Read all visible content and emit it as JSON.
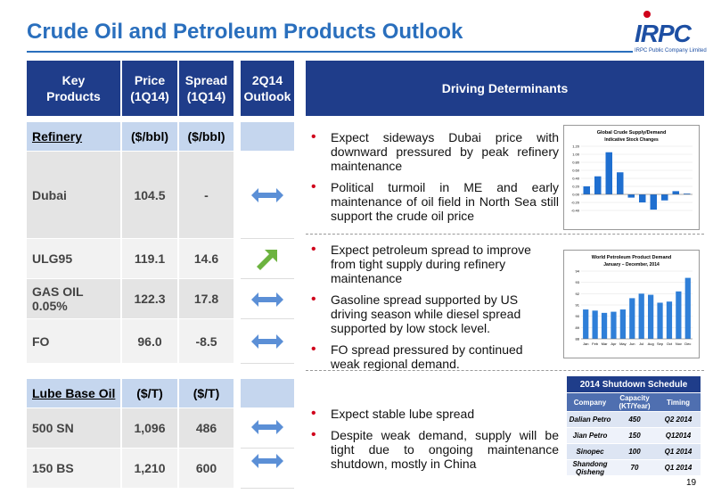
{
  "header": {
    "title": "Crude Oil and Petroleum Products Outlook",
    "logo": "IRPC",
    "logo_subtitle": "IRPC Public Company Limited"
  },
  "products_table": {
    "columns": [
      [
        "Key",
        "Products"
      ],
      [
        "Price",
        "(1Q14)"
      ],
      [
        "Spread",
        "(1Q14)"
      ],
      [
        "2Q14",
        "Outlook"
      ]
    ],
    "sections": [
      {
        "name": "Refinery",
        "units": [
          "($/bbl)",
          "($/bbl)"
        ],
        "rows": [
          [
            "Dubai",
            "104.5",
            "-"
          ],
          [
            "ULG95",
            "119.1",
            "14.6"
          ],
          [
            "GAS OIL 0.05%",
            "122.3",
            "17.8"
          ],
          [
            "FO",
            "96.0",
            "-8.5"
          ]
        ]
      },
      {
        "name": "Lube Base Oil",
        "units": [
          "($/T)",
          "($/T)"
        ],
        "rows": [
          [
            "500 SN",
            "1,096",
            "486"
          ],
          [
            "150 BS",
            "1,210",
            "600"
          ]
        ]
      }
    ]
  },
  "determinants": {
    "title": "Driving Determinants",
    "sections": [
      {
        "bullets": [
          "Expect sideways Dubai price with downward pressured by peak refinery maintenance",
          "Political turmoil in ME and early maintenance of  oil field in North Sea still support the crude oil price"
        ]
      },
      {
        "bullets": [
          "Expect petroleum spread to improve from tight supply during refinery maintenance",
          "Gasoline spread supported by US driving season while diesel spread supported by low stock level.",
          "FO spread pressured by continued weak regional demand."
        ]
      },
      {
        "bullets": [
          "Expect stable lube spread",
          "Despite weak demand, supply will be tight due to ongoing maintenance shutdown, mostly in China"
        ]
      }
    ]
  },
  "chart_data": [
    {
      "type": "bar",
      "title": "Global Crude Supply/Demand",
      "subtitle": "Indicative Stock Changes",
      "values": [
        0.2,
        0.45,
        1.05,
        0.55,
        -0.08,
        -0.2,
        -0.38,
        -0.15,
        0.08,
        0.02
      ],
      "color": "#1f6fd0",
      "ylim": [
        -0.4,
        1.2
      ],
      "yticks": [
        {
          "value": -0.4,
          "label": "-0.40"
        },
        {
          "value": -0.2,
          "label": "-0.20"
        },
        {
          "value": 0,
          "label": "0.00"
        },
        {
          "value": 0.2,
          "label": "0.20"
        },
        {
          "value": 0.4,
          "label": "0.40"
        },
        {
          "value": 0.6,
          "label": "0.60"
        },
        {
          "value": 0.8,
          "label": "0.80"
        },
        {
          "value": 1,
          "label": "1.00"
        },
        {
          "value": 1.2,
          "label": "1.20"
        }
      ]
    },
    {
      "type": "bar",
      "title": "World Petroleum Product Demand",
      "subtitle": "January – December, 2014",
      "categories": [
        "Jan",
        "Feb",
        "Mar",
        "Apr",
        "May",
        "Jun",
        "Jul",
        "Aug",
        "Sep",
        "Oct",
        "Nov",
        "Dec"
      ],
      "values": [
        90.6,
        90.5,
        90.3,
        90.4,
        90.6,
        91.6,
        92.0,
        91.9,
        91.2,
        91.3,
        92.2,
        93.4
      ],
      "color": "#2f7fd8",
      "ylim": [
        88,
        94
      ],
      "yticks": [
        88,
        89,
        90,
        91,
        92,
        93,
        94
      ]
    }
  ],
  "shutdown_table": {
    "title": "2014 Shutdown Schedule",
    "columns": [
      "Company",
      "Capacity (KT/Year)",
      "Timing"
    ],
    "rows": [
      [
        "Dalian Petro",
        "450",
        "Q2 2014"
      ],
      [
        "Jian Petro",
        "150",
        "Q12014"
      ],
      [
        "Sinopec",
        "100",
        "Q1 2014"
      ],
      [
        "Shandong Qisheng",
        "70",
        "Q1 2014"
      ]
    ]
  },
  "page_number": "19"
}
